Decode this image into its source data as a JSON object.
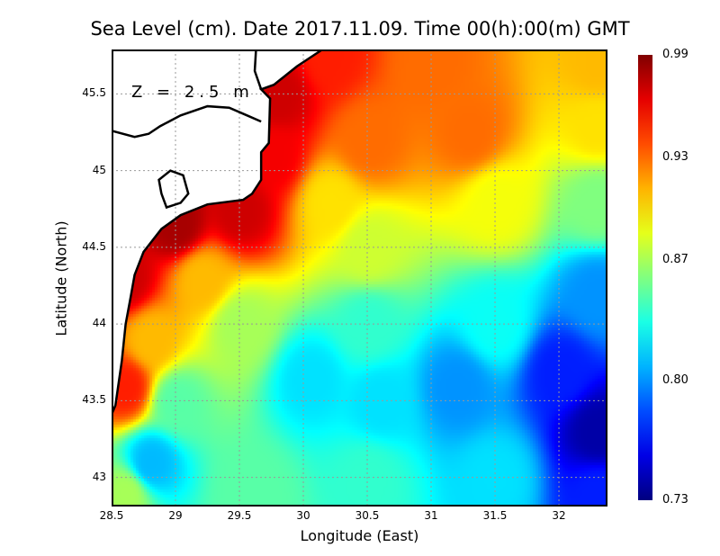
{
  "title": "Sea Level (cm). Date 2017.11.09. Time 00(h):00(m) GMT",
  "depth_label": "Z = 2.5 m",
  "chart_data": {
    "type": "heatmap",
    "title": "Sea Level (cm). Date 2017.11.09. Time 00(h):00(m) GMT",
    "xlabel": "Longitude (East)",
    "ylabel": "Latitude (North)",
    "xlim": [
      28.5,
      32.38
    ],
    "ylim": [
      42.81,
      45.79
    ],
    "xticks": [
      "28.5",
      "29",
      "29.5",
      "30",
      "30.5",
      "31",
      "31.5",
      "32"
    ],
    "yticks": [
      "43",
      "43.5",
      "44",
      "44.5",
      "45",
      "45.5"
    ],
    "grid": true,
    "colorbar": {
      "range": [
        0.73,
        0.99
      ],
      "labels": [
        "0.99",
        "0.93",
        "0.87",
        "0.80",
        "0.73"
      ],
      "colormap": "jet"
    },
    "field_samples": [
      [
        28.6,
        44.3,
        0.97
      ],
      [
        29.0,
        44.65,
        0.98
      ],
      [
        29.5,
        44.75,
        0.97
      ],
      [
        29.75,
        45.1,
        0.96
      ],
      [
        29.8,
        45.5,
        0.97
      ],
      [
        30.2,
        45.75,
        0.95
      ],
      [
        31,
        45.7,
        0.93
      ],
      [
        32.3,
        45.7,
        0.91
      ],
      [
        32.3,
        45.3,
        0.9
      ],
      [
        31.3,
        45.25,
        0.93
      ],
      [
        30.5,
        45.2,
        0.93
      ],
      [
        30.2,
        44.8,
        0.9
      ],
      [
        29.2,
        44.3,
        0.91
      ],
      [
        28.6,
        43.6,
        0.95
      ],
      [
        28.8,
        43.9,
        0.91
      ],
      [
        29.5,
        44.0,
        0.87
      ],
      [
        30.5,
        44.5,
        0.88
      ],
      [
        31.5,
        44.8,
        0.89
      ],
      [
        32.3,
        44.8,
        0.86
      ],
      [
        32.3,
        44.2,
        0.8
      ],
      [
        31.5,
        44.0,
        0.83
      ],
      [
        30.5,
        44.0,
        0.84
      ],
      [
        30.05,
        43.65,
        0.82
      ],
      [
        29.0,
        43.5,
        0.85
      ],
      [
        28.8,
        43.1,
        0.81
      ],
      [
        28.6,
        42.9,
        0.87
      ],
      [
        29.6,
        42.9,
        0.85
      ],
      [
        30.5,
        43.0,
        0.84
      ],
      [
        31.2,
        43.6,
        0.8
      ],
      [
        31.5,
        43.0,
        0.82
      ],
      [
        32.3,
        43.3,
        0.74
      ],
      [
        32.0,
        43.7,
        0.77
      ],
      [
        32.3,
        42.9,
        0.77
      ],
      [
        30.6,
        43.5,
        0.82
      ]
    ],
    "coastline": [
      [
        30.15,
        45.79
      ],
      [
        29.95,
        45.68
      ],
      [
        29.77,
        45.56
      ],
      [
        29.67,
        45.53
      ],
      [
        29.74,
        45.47
      ],
      [
        29.73,
        45.18
      ],
      [
        29.67,
        45.12
      ],
      [
        29.67,
        44.94
      ],
      [
        29.6,
        44.85
      ],
      [
        29.53,
        44.81
      ],
      [
        29.25,
        44.78
      ],
      [
        29.04,
        44.71
      ],
      [
        28.89,
        44.62
      ],
      [
        28.75,
        44.47
      ],
      [
        28.68,
        44.32
      ],
      [
        28.65,
        44.18
      ],
      [
        28.61,
        44.0
      ],
      [
        28.58,
        43.76
      ],
      [
        28.53,
        43.47
      ],
      [
        28.5,
        43.41
      ]
    ],
    "inland_lines": [
      [
        [
          28.5,
          45.26
        ],
        [
          28.68,
          45.22
        ],
        [
          28.79,
          45.24
        ],
        [
          28.88,
          45.29
        ],
        [
          29.04,
          45.36
        ],
        [
          29.25,
          45.42
        ],
        [
          29.42,
          45.41
        ],
        [
          29.56,
          45.36
        ],
        [
          29.67,
          45.32
        ]
      ],
      [
        [
          29.63,
          45.79
        ],
        [
          29.62,
          45.65
        ],
        [
          29.67,
          45.53
        ]
      ],
      [
        [
          28.89,
          44.85
        ],
        [
          28.87,
          44.94
        ],
        [
          28.96,
          45.0
        ],
        [
          29.06,
          44.97
        ],
        [
          29.1,
          44.85
        ],
        [
          29.04,
          44.79
        ],
        [
          28.93,
          44.76
        ],
        [
          28.89,
          44.85
        ]
      ]
    ]
  }
}
